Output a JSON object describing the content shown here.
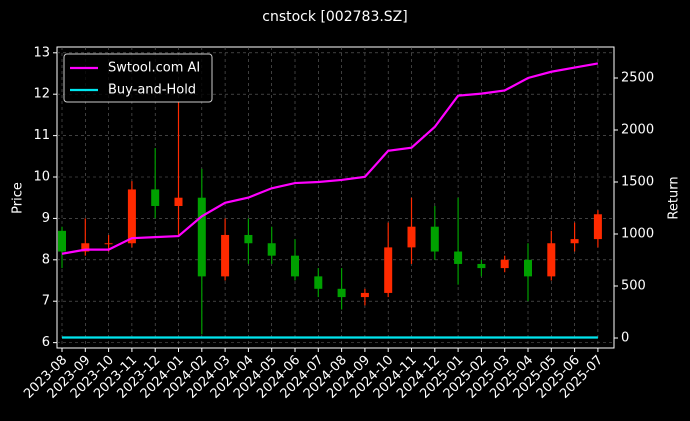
{
  "chart_data": {
    "type": "candlestick",
    "title": "cnstock [002783.SZ]",
    "y_label": "Price",
    "y2_label": "Return",
    "categories": [
      "2023-08",
      "2023-09",
      "2023-10",
      "2023-11",
      "2023-12",
      "2024-01",
      "2024-02",
      "2024-03",
      "2024-04",
      "2024-05",
      "2024-06",
      "2024-07",
      "2024-08",
      "2024-09",
      "2024-10",
      "2024-11",
      "2024-12",
      "2025-01",
      "2025-02",
      "2025-03",
      "2025-04",
      "2025-05",
      "2025-06",
      "2025-07"
    ],
    "open": [
      8.7,
      8.2,
      8.4,
      8.4,
      9.7,
      9.3,
      9.5,
      7.6,
      8.6,
      8.4,
      8.1,
      7.6,
      7.3,
      7.1,
      7.2,
      8.3,
      8.8,
      8.2,
      7.9,
      7.8,
      8.0,
      7.6,
      8.4,
      8.5
    ],
    "high": [
      8.8,
      9.0,
      8.6,
      9.9,
      10.7,
      11.8,
      10.2,
      9.0,
      9.0,
      8.8,
      8.5,
      7.8,
      7.8,
      7.3,
      8.9,
      9.5,
      9.3,
      9.5,
      8.0,
      8.1,
      8.4,
      8.7,
      8.9,
      9.2
    ],
    "low": [
      7.8,
      8.1,
      8.2,
      8.3,
      9.0,
      8.6,
      6.2,
      7.5,
      7.9,
      7.9,
      7.5,
      7.1,
      6.8,
      6.9,
      7.1,
      7.9,
      8.0,
      7.4,
      7.6,
      7.7,
      7.0,
      7.5,
      8.2,
      8.3
    ],
    "close": [
      8.2,
      8.4,
      8.4,
      9.7,
      9.3,
      9.5,
      7.6,
      8.6,
      8.4,
      8.1,
      7.6,
      7.3,
      7.1,
      7.2,
      8.3,
      8.8,
      8.2,
      7.9,
      7.8,
      8.0,
      7.6,
      8.4,
      8.5,
      9.1
    ],
    "up_color": "#ff2a00",
    "down_color": "#00a000",
    "series": [
      {
        "name": "Swtool.com AI",
        "color": "#ff00ff",
        "axis": "y2",
        "values": [
          810,
          850,
          850,
          960,
          970,
          980,
          1170,
          1300,
          1350,
          1440,
          1490,
          1500,
          1520,
          1550,
          1800,
          1830,
          2030,
          2330,
          2350,
          2380,
          2500,
          2560,
          2600,
          2640
        ]
      },
      {
        "name": "Buy-and-Hold",
        "color": "#00e5ee",
        "axis": "y2",
        "values": [
          5,
          5,
          5,
          5,
          5,
          5,
          5,
          5,
          5,
          5,
          5,
          5,
          5,
          5,
          5,
          5,
          5,
          5,
          5,
          5,
          5,
          5,
          5,
          5
        ]
      }
    ],
    "ylim": [
      5.87,
      13.14
    ],
    "yticks": [
      6,
      7,
      8,
      9,
      10,
      11,
      12,
      13
    ],
    "y2lim": [
      -96,
      2798
    ],
    "y2ticks": [
      0,
      500,
      1000,
      1500,
      2000,
      2500
    ],
    "grid": true,
    "legend": "upper left"
  }
}
